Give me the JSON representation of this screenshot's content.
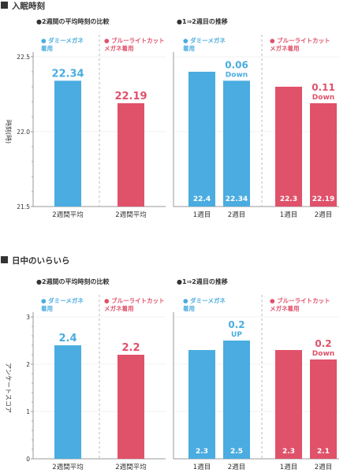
{
  "colors": {
    "blue": "#4aace0",
    "red": "#e0516a",
    "axis": "#999999",
    "grid": "#dddddd",
    "text": "#333333"
  },
  "chart_data": [
    {
      "section_title": "入眠時刻",
      "type": "bar",
      "ylabel": "時刻(時)",
      "ylim": [
        21.5,
        22.5
      ],
      "yticks": [
        "22.5",
        "22.0",
        "21.5"
      ],
      "left": {
        "subtitle": "●2週間の平均時刻の比較",
        "legend": [
          {
            "text": "● ダミーメガネ\n着用",
            "color": "blue"
          },
          {
            "text": "● ブルーライトカット\nメガネ着用",
            "color": "red"
          }
        ],
        "categories": [
          "2週間平均",
          "2週間平均"
        ],
        "values": [
          22.34,
          22.19
        ],
        "labels": [
          "22.34",
          "22.19"
        ],
        "colors": [
          "blue",
          "red"
        ]
      },
      "right": {
        "subtitle": "●1⇒2週目の推移",
        "legend": [
          {
            "text": "● ダミーメガネ\n着用",
            "color": "blue"
          },
          {
            "text": "● ブルーライトカット\nメガネ着用",
            "color": "red"
          }
        ],
        "groups": [
          {
            "color": "blue",
            "categories": [
              "1週目",
              "2週目"
            ],
            "values": [
              22.4,
              22.34
            ],
            "labels": [
              "22.4",
              "22.34"
            ],
            "change": "0.06\nDown"
          },
          {
            "color": "red",
            "categories": [
              "1週目",
              "2週目"
            ],
            "values": [
              22.3,
              22.19
            ],
            "labels": [
              "22.3",
              "22.19"
            ],
            "change": "0.11\nDown"
          }
        ]
      }
    },
    {
      "section_title": "日中のいらいら",
      "type": "bar",
      "ylabel": "アンケートスコア",
      "ylim": [
        0,
        3
      ],
      "yticks": [
        "3",
        "2",
        "1",
        "0"
      ],
      "left": {
        "subtitle": "●2週間の平均時刻の比較",
        "legend": [
          {
            "text": "● ダミーメガネ\n着用",
            "color": "blue"
          },
          {
            "text": "● ブルーライトカット\nメガネ着用",
            "color": "red"
          }
        ],
        "categories": [
          "2週間平均",
          "2週間平均"
        ],
        "values": [
          2.4,
          2.2
        ],
        "labels": [
          "2.4",
          "2.2"
        ],
        "colors": [
          "blue",
          "red"
        ]
      },
      "right": {
        "subtitle": "●1⇒2週目の推移",
        "legend": [
          {
            "text": "● ダミーメガネ\n着用",
            "color": "blue"
          },
          {
            "text": "● ブルーライトカット\nメガネ着用",
            "color": "red"
          }
        ],
        "groups": [
          {
            "color": "blue",
            "categories": [
              "1週目",
              "2週目"
            ],
            "values": [
              2.3,
              2.5
            ],
            "labels": [
              "2.3",
              "2.5"
            ],
            "change": "0.2\nUP"
          },
          {
            "color": "red",
            "categories": [
              "1週目",
              "2週目"
            ],
            "values": [
              2.3,
              2.1
            ],
            "labels": [
              "2.3",
              "2.1"
            ],
            "change": "0.2\nDown"
          }
        ]
      }
    }
  ]
}
